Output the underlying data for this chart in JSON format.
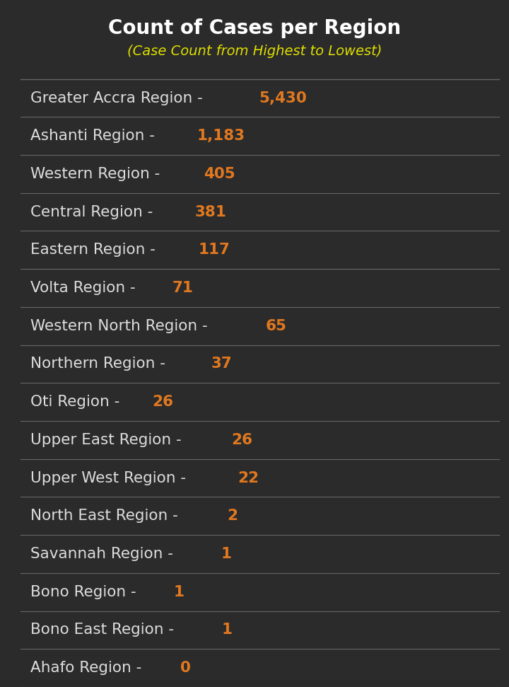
{
  "title": "Count of Cases per Region",
  "subtitle": "(Case Count from Highest to Lowest)",
  "title_color": "#ffffff",
  "subtitle_color": "#dddd00",
  "background_color": "#2b2b2b",
  "divider_color": "#666666",
  "region_name_color": "#dddddd",
  "count_color": "#e07820",
  "rows": [
    {
      "region": "Greater Accra Region",
      "count": "5,430"
    },
    {
      "region": "Ashanti Region",
      "count": "1,183"
    },
    {
      "region": "Western Region",
      "count": "405"
    },
    {
      "region": "Central Region",
      "count": "381"
    },
    {
      "region": "Eastern Region",
      "count": "117"
    },
    {
      "region": "Volta Region",
      "count": "71"
    },
    {
      "region": "Western North Region",
      "count": "65"
    },
    {
      "region": "Northern Region",
      "count": "37"
    },
    {
      "region": "Oti Region",
      "count": "26"
    },
    {
      "region": "Upper East Region",
      "count": "26"
    },
    {
      "region": "Upper West Region",
      "count": "22"
    },
    {
      "region": "North East Region",
      "count": "2"
    },
    {
      "region": "Savannah Region",
      "count": "1"
    },
    {
      "region": "Bono Region",
      "count": "1"
    },
    {
      "region": "Bono East Region",
      "count": "1"
    },
    {
      "region": "Ahafo Region",
      "count": "0"
    }
  ],
  "fig_width": 7.2,
  "fig_height": 9.71,
  "dpi": 100,
  "title_fontsize": 20,
  "subtitle_fontsize": 14,
  "row_fontsize": 15.5
}
